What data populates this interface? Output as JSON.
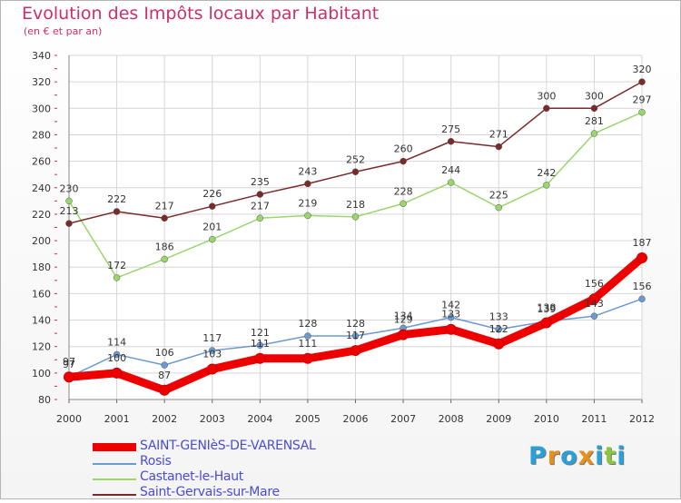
{
  "title": "Evolution des Impôts locaux par Habitant",
  "subtitle": "(en € et par an)",
  "logo": {
    "letters": [
      "P",
      "r",
      "o",
      "x",
      "i",
      "t",
      "i"
    ],
    "colors": [
      "#2aa0d8",
      "#e8901a",
      "#2aa0d8",
      "#e8901a",
      "#2aa0d8",
      "#8cc63f",
      "#2aa0d8"
    ]
  },
  "chart_data": {
    "type": "line",
    "title": "Evolution des Impôts locaux par Habitant",
    "ylabel": "(en € et par an)",
    "xlabel": "",
    "x": [
      "2000",
      "2001",
      "2002",
      "2003",
      "2004",
      "2005",
      "2006",
      "2007",
      "2008",
      "2009",
      "2010",
      "2011",
      "2012"
    ],
    "ylim": [
      80,
      340
    ],
    "yticks": [
      "80",
      "100",
      "120",
      "140",
      "160",
      "180",
      "200",
      "220",
      "240",
      "260",
      "280",
      "300",
      "320",
      "340"
    ],
    "legend_position": "bottom-left",
    "grid": true,
    "series": [
      {
        "name": "SAINT-GENIèS-DE-VARENSAL",
        "color": "#ee0000",
        "bold": true,
        "values": [
          97,
          100,
          87,
          103,
          111,
          111,
          117,
          129,
          133,
          122,
          138,
          156,
          187
        ],
        "labels": [
          "97",
          "100",
          "87",
          "103",
          "111",
          "111",
          "117",
          "129",
          "133",
          "122",
          "138",
          "156",
          "187"
        ]
      },
      {
        "name": "Rosis",
        "color": "#6b9ad0",
        "bold": false,
        "values": [
          97,
          114,
          106,
          117,
          121,
          128,
          128,
          134,
          142,
          133,
          139,
          143,
          156
        ],
        "labels": [
          "97",
          "114",
          "106",
          "117",
          "121",
          "128",
          "128",
          "134",
          "142",
          "133",
          "139",
          "143",
          "156"
        ]
      },
      {
        "name": "Castanet-le-Haut",
        "color": "#99d66b",
        "bold": false,
        "values": [
          230,
          172,
          186,
          201,
          217,
          219,
          218,
          228,
          244,
          225,
          242,
          281,
          297
        ],
        "labels": [
          "230",
          "172",
          "186",
          "201",
          "217",
          "219",
          "218",
          "228",
          "244",
          "225",
          "242",
          "281",
          "297"
        ]
      },
      {
        "name": "Saint-Gervais-sur-Mare",
        "color": "#7a2a2a",
        "bold": false,
        "values": [
          213,
          222,
          217,
          226,
          235,
          243,
          252,
          260,
          275,
          271,
          300,
          300,
          320
        ],
        "labels": [
          "213",
          "222",
          "217",
          "226",
          "235",
          "243",
          "252",
          "260",
          "275",
          "271",
          "300",
          "300",
          "320"
        ]
      }
    ]
  }
}
